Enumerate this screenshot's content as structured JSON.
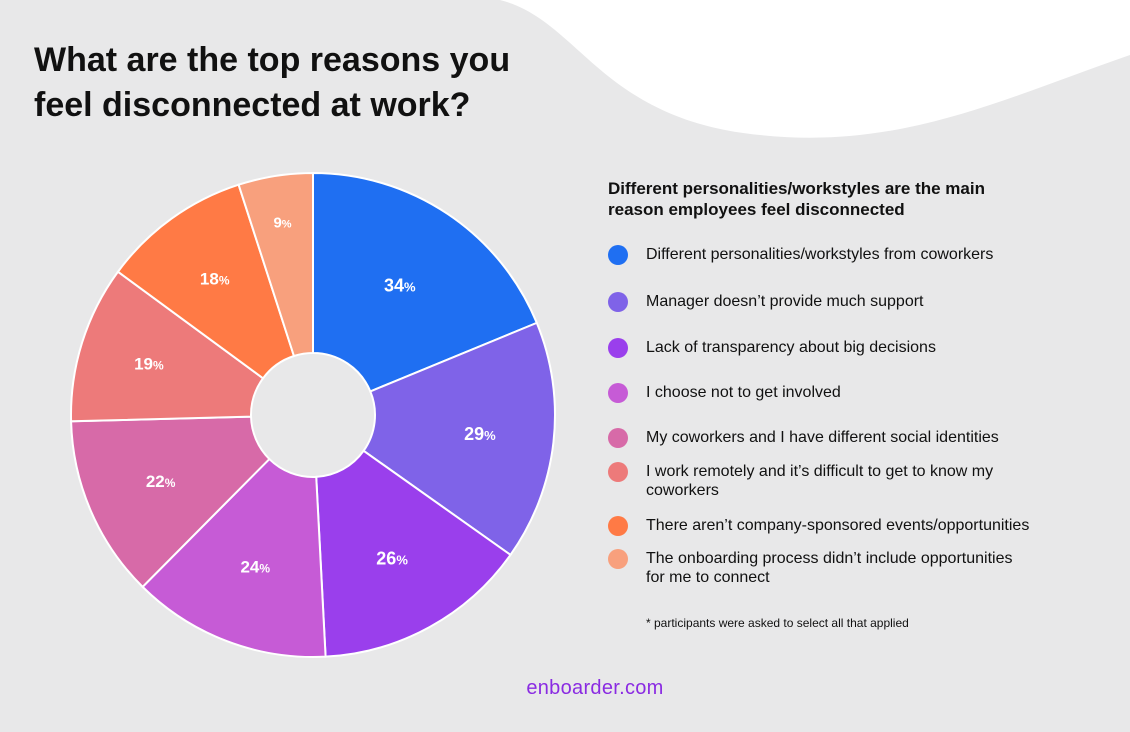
{
  "title_lines": [
    "What are the top reasons you",
    "feel disconnected at work?"
  ],
  "chart_data": {
    "type": "pie",
    "title": "What are the top reasons you feel disconnected at work?",
    "subtitle": "Different personalities/workstyles are the main reason employees feel disconnected",
    "unit": "%",
    "categories": [
      "Different personalities/workstyles from coworkers",
      "Manager doesn’t provide much support",
      "Lack of transparency about big decisions",
      "I choose not to get involved",
      "My coworkers and I have different social identities",
      "I work remotely and it’s difficult to get to know my coworkers",
      "There aren’t company-sponsored events/opportunities",
      "The onboarding process didn’t include opportunities for me to connect"
    ],
    "values": [
      34,
      29,
      26,
      24,
      22,
      19,
      18,
      9
    ],
    "colors": [
      "#1f6ff2",
      "#7f63e8",
      "#9a3fec",
      "#c65bd6",
      "#d76aa8",
      "#ed7a7a",
      "#ff7a45",
      "#f8a07d"
    ],
    "donut": true,
    "legend_position": "right"
  },
  "legend": {
    "heading_lines": [
      "Different personalities/workstyles are the main",
      "reason employees feel disconnected"
    ],
    "items": [
      [
        "Different personalities/workstyles from coworkers"
      ],
      [
        "Manager doesn’t provide much support"
      ],
      [
        "Lack of transparency about big decisions"
      ],
      [
        "I choose not to get involved"
      ],
      [
        "My coworkers and I have different social identities"
      ],
      [
        "I work remotely and it’s difficult to get to know my",
        "coworkers"
      ],
      [
        "There aren’t company-sponsored events/opportunities"
      ],
      [
        "The onboarding process didn’t include opportunities",
        "for me to connect"
      ]
    ]
  },
  "footnote": "* participants were asked to select all that applied",
  "brand": "enboarder.com"
}
